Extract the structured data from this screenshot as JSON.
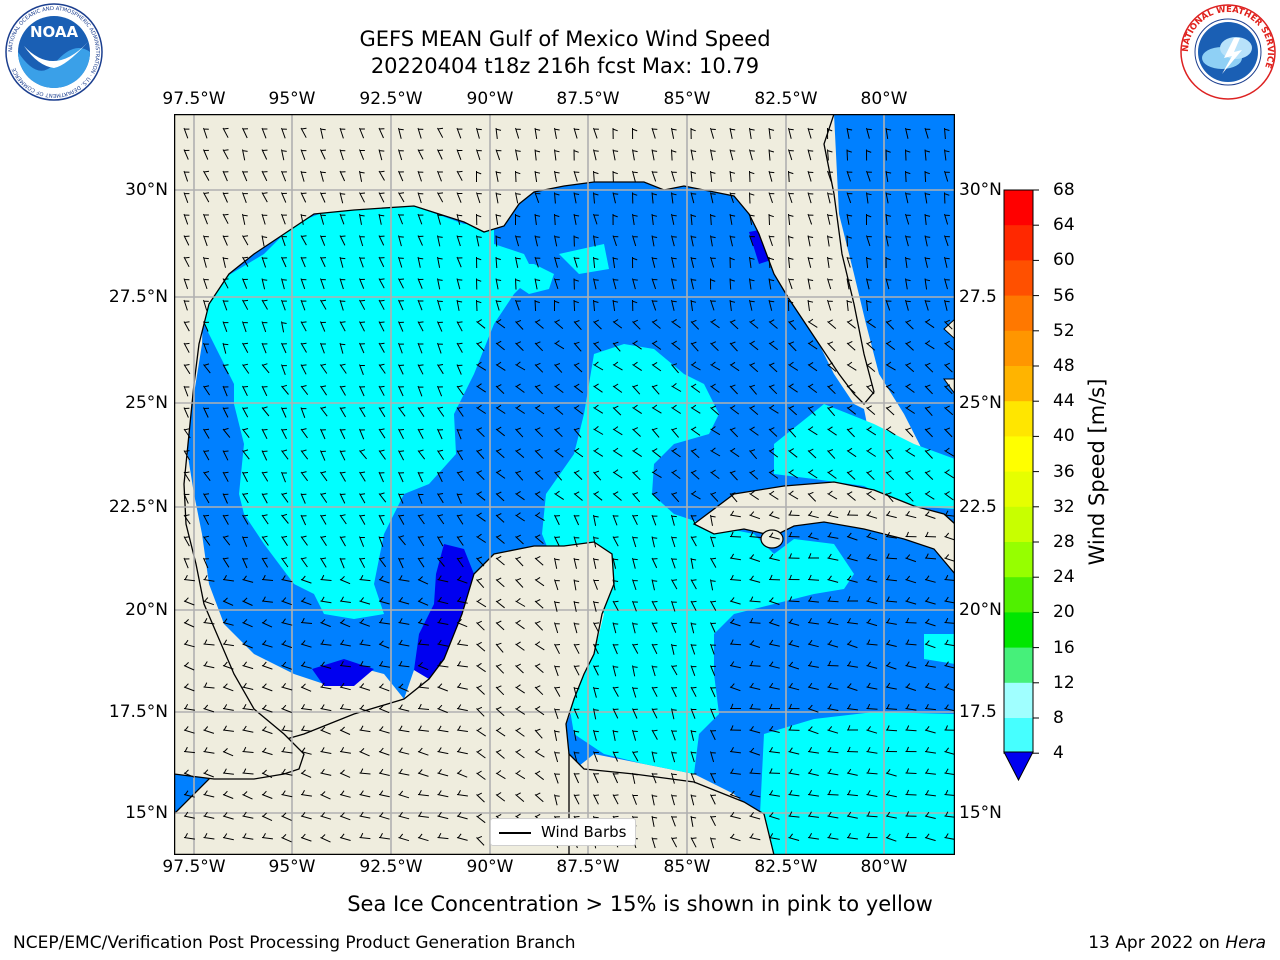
{
  "header": {
    "title_line1": "GEFS MEAN Gulf of Mexico Wind Speed",
    "title_line2": "20220404 t18z 216h fcst   Max: 10.79"
  },
  "logos": {
    "left_text": "NOAA",
    "left_ring_text": "NATIONAL OCEANIC AND ATMOSPHERIC ADMINISTRATION · U.S. DEPARTMENT OF COMMERCE",
    "right_ring_text": "NATIONAL WEATHER SERVICE"
  },
  "map": {
    "lon_labels": [
      "97.5°W",
      "95°W",
      "92.5°W",
      "90°W",
      "87.5°W",
      "85°W",
      "82.5°W",
      "80°W"
    ],
    "lat_labels_left": [
      "30°N",
      "27.5°N",
      "25°N",
      "22.5°N",
      "20°N",
      "17.5°N",
      "15°N"
    ],
    "lat_labels_right": [
      "30°N",
      "27.5",
      "25°N",
      "22.5",
      "20°N",
      "17.5",
      "15°N"
    ],
    "legend_label": "Wind Barbs",
    "colors": {
      "land": "#efedde",
      "speed_lt4": "#0000f0",
      "speed_4_8": "#0080ff",
      "speed_8_12": "#00ffff",
      "grid": "#b0b0b0"
    }
  },
  "colorbar": {
    "title": "Wind Speed [m/s]",
    "labels": [
      "68",
      "64",
      "60",
      "56",
      "52",
      "48",
      "44",
      "40",
      "36",
      "32",
      "28",
      "24",
      "20",
      "16",
      "12",
      "8",
      "4"
    ],
    "colors": [
      "#ff0000",
      "#ff2800",
      "#ff5000",
      "#ff7800",
      "#ff9600",
      "#ffb400",
      "#ffe600",
      "#ffff00",
      "#e6ff00",
      "#c8ff00",
      "#96ff00",
      "#50f000",
      "#00e600",
      "#46f07a",
      "#a0ffff",
      "#46ffff",
      "#00ffff",
      "#0080ff"
    ],
    "extend_color": "#0000f0"
  },
  "footer": {
    "note": "Sea Ice Concentration > 15% is shown in pink to yellow",
    "left": "NCEP/EMC/Verification Post Processing Product Generation Branch",
    "right_date": "13 Apr 2022 on ",
    "right_machine": "Hera"
  }
}
